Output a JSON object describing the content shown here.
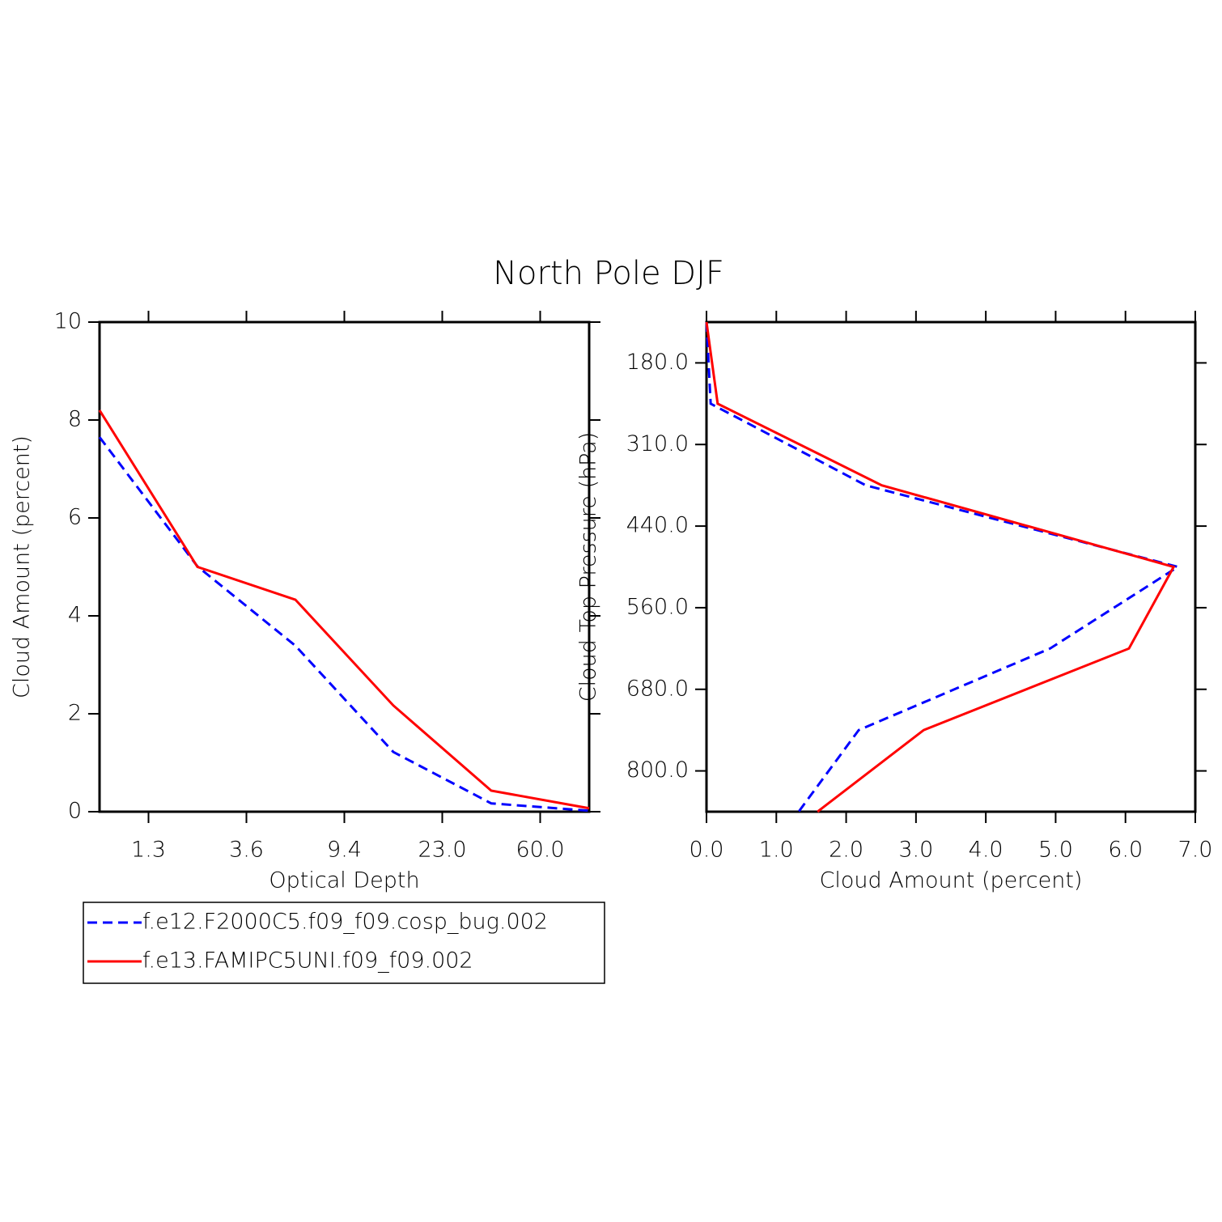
{
  "title": "North Pole DJF",
  "chart_data": [
    {
      "type": "line",
      "xlabel": "Optical Depth",
      "ylabel": "Cloud Amount (percent)",
      "x": [
        0,
        1,
        2,
        3,
        4,
        5
      ],
      "xlim": [
        0,
        5
      ],
      "xticks": [
        {
          "value": 0.5,
          "label": "1.3"
        },
        {
          "value": 1.5,
          "label": "3.6"
        },
        {
          "value": 2.5,
          "label": "9.4"
        },
        {
          "value": 3.5,
          "label": "23.0"
        },
        {
          "value": 4.5,
          "label": "60.0"
        }
      ],
      "ylim": [
        0,
        10
      ],
      "yticks": [
        0,
        2,
        4,
        6,
        8,
        10
      ],
      "series": [
        {
          "name": "f.e12.F2000C5.f09_f09.cosp_bug.002",
          "color": "#0000ff",
          "dash": true,
          "values": [
            7.65,
            5.01,
            3.39,
            1.22,
            0.17,
            0.02
          ]
        },
        {
          "name": "f.e13.FAMIPC5UNI.f09_f09.002",
          "color": "#ff0000",
          "dash": false,
          "values": [
            8.2,
            5.0,
            4.33,
            2.17,
            0.43,
            0.07
          ]
        }
      ]
    },
    {
      "type": "profile",
      "xlabel": "Cloud Amount (percent)",
      "ylabel": "Cloud Top Pressure (hPa)",
      "y": [
        0,
        1,
        2,
        3,
        4,
        5,
        6
      ],
      "ylim": [
        0,
        6
      ],
      "invert_y": true,
      "yticks": [
        {
          "value": 0.5,
          "label": "180.0"
        },
        {
          "value": 1.5,
          "label": "310.0"
        },
        {
          "value": 2.5,
          "label": "440.0"
        },
        {
          "value": 3.5,
          "label": "560.0"
        },
        {
          "value": 4.5,
          "label": "680.0"
        },
        {
          "value": 5.5,
          "label": "800.0"
        }
      ],
      "xlim": [
        0,
        7
      ],
      "xticks": [
        {
          "value": 0,
          "label": "0.0"
        },
        {
          "value": 1,
          "label": "1.0"
        },
        {
          "value": 2,
          "label": "2.0"
        },
        {
          "value": 3,
          "label": "3.0"
        },
        {
          "value": 4,
          "label": "4.0"
        },
        {
          "value": 5,
          "label": "5.0"
        },
        {
          "value": 6,
          "label": "6.0"
        },
        {
          "value": 7,
          "label": "7.0"
        }
      ],
      "series": [
        {
          "color": "#0000ff",
          "dash": true,
          "values": [
            0,
            0.06,
            2.28,
            6.75,
            4.92,
            2.18,
            1.32
          ]
        },
        {
          "color": "#ff0000",
          "dash": false,
          "values": [
            0,
            0.16,
            2.51,
            6.69,
            6.05,
            3.11,
            1.59
          ]
        }
      ]
    }
  ]
}
